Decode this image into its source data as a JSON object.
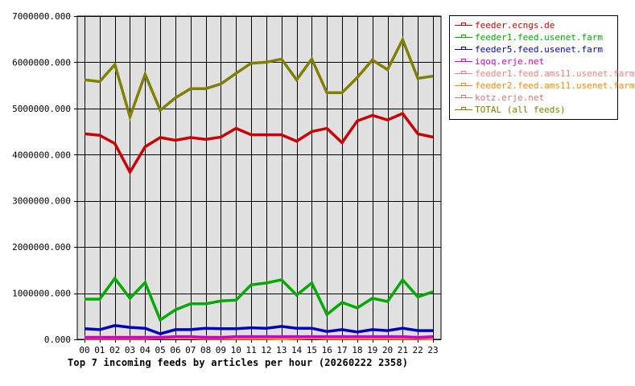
{
  "chart_data": {
    "type": "line",
    "title": "Top 7 incoming feeds by articles per hour (20260222 2358)",
    "xlabel": "",
    "ylabel": "",
    "ylim": [
      0,
      7000000
    ],
    "yticks": [
      "0.000",
      "1000000.000",
      "2000000.000",
      "3000000.000",
      "4000000.000",
      "5000000.000",
      "6000000.000",
      "7000000.000"
    ],
    "grid": true,
    "legend_position": "right",
    "x": [
      "00",
      "01",
      "02",
      "03",
      "04",
      "05",
      "06",
      "07",
      "08",
      "09",
      "10",
      "11",
      "12",
      "13",
      "14",
      "15",
      "16",
      "17",
      "18",
      "19",
      "20",
      "21",
      "22",
      "23"
    ],
    "series": [
      {
        "name": "feeder.ecngs.de",
        "color": "#cc0000",
        "values": [
          4450000,
          4420000,
          4240000,
          3620000,
          4170000,
          4370000,
          4310000,
          4370000,
          4330000,
          4380000,
          4570000,
          4430000,
          4430000,
          4430000,
          4290000,
          4500000,
          4570000,
          4260000,
          4730000,
          4850000,
          4750000,
          4890000,
          4450000,
          4380000
        ]
      },
      {
        "name": "feeder1.feed.usenet.farm",
        "color": "#00aa00",
        "values": [
          870000,
          870000,
          1320000,
          890000,
          1230000,
          420000,
          640000,
          770000,
          770000,
          830000,
          850000,
          1180000,
          1220000,
          1290000,
          960000,
          1220000,
          540000,
          800000,
          680000,
          890000,
          820000,
          1290000,
          920000,
          1030000
        ]
      },
      {
        "name": "feeder5.feed.usenet.farm",
        "color": "#0000bb",
        "values": [
          230000,
          210000,
          300000,
          260000,
          240000,
          120000,
          210000,
          210000,
          240000,
          230000,
          230000,
          250000,
          240000,
          280000,
          240000,
          240000,
          170000,
          210000,
          160000,
          210000,
          190000,
          240000,
          190000,
          190000
        ]
      },
      {
        "name": "iqoq.erje.net",
        "color": "#cc00cc",
        "values": [
          40000,
          40000,
          40000,
          40000,
          40000,
          40000,
          60000,
          60000,
          40000,
          40000,
          60000,
          60000,
          60000,
          60000,
          60000,
          60000,
          60000,
          60000,
          60000,
          60000,
          60000,
          60000,
          40000,
          60000
        ]
      },
      {
        "name": "feeder1.feed.ams11.usenet.farm",
        "color": "#f08080",
        "values": [
          50000,
          50000,
          50000,
          50000,
          50000,
          50000,
          50000,
          50000,
          50000,
          50000,
          50000,
          50000,
          50000,
          50000,
          50000,
          50000,
          50000,
          50000,
          50000,
          50000,
          50000,
          50000,
          50000,
          50000
        ]
      },
      {
        "name": "feeder2.feed.ams11.usenet.farm",
        "color": "#ff8800",
        "values": [
          20000,
          20000,
          20000,
          20000,
          20000,
          30000,
          30000,
          30000,
          20000,
          20000,
          20000,
          20000,
          20000,
          10000,
          20000,
          30000,
          20000,
          20000,
          20000,
          20000,
          20000,
          20000,
          20000,
          10000
        ]
      },
      {
        "name": "kotz.erje.net",
        "color": "#cc7777",
        "values": [
          30000,
          30000,
          30000,
          30000,
          30000,
          30000,
          30000,
          30000,
          30000,
          30000,
          30000,
          30000,
          30000,
          30000,
          30000,
          30000,
          30000,
          30000,
          30000,
          30000,
          30000,
          30000,
          30000,
          30000
        ]
      },
      {
        "name": "TOTAL (all feeds)",
        "color": "#808000",
        "values": [
          5620000,
          5580000,
          5950000,
          4820000,
          5740000,
          4960000,
          5230000,
          5430000,
          5430000,
          5530000,
          5760000,
          5980000,
          6000000,
          6070000,
          5620000,
          6070000,
          5340000,
          5340000,
          5670000,
          6050000,
          5840000,
          6490000,
          5650000,
          5700000
        ]
      }
    ]
  },
  "legend": {
    "items": [
      {
        "label": "feeder.ecngs.de",
        "color": "#cc0000"
      },
      {
        "label": "feeder1.feed.usenet.farm",
        "color": "#00aa00"
      },
      {
        "label": "feeder5.feed.usenet.farm",
        "color": "#0000bb"
      },
      {
        "label": "iqoq.erje.net",
        "color": "#cc00cc"
      },
      {
        "label": "feeder1.feed.ams11.usenet.farm",
        "color": "#f08080"
      },
      {
        "label": "feeder2.feed.ams11.usenet.farm",
        "color": "#ff8800"
      },
      {
        "label": "kotz.erje.net",
        "color": "#cc7777"
      },
      {
        "label": "TOTAL (all feeds)",
        "color": "#808000"
      }
    ]
  },
  "colors": {
    "plot_background": "#e0e0e0",
    "grid": "#000000"
  }
}
